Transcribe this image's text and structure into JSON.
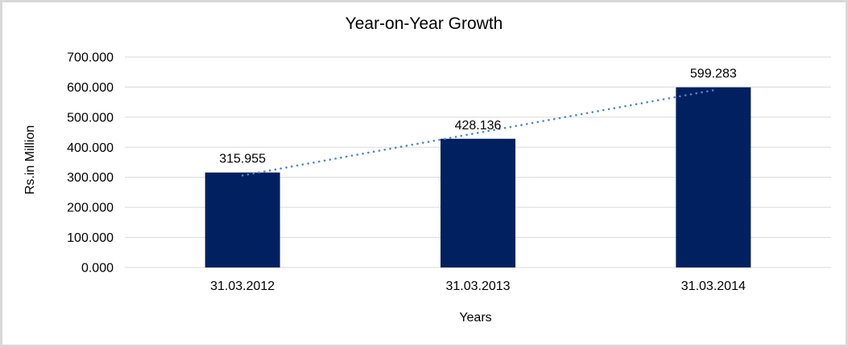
{
  "frame": {
    "background": "#ffffff",
    "border_color": "#d8d8d8"
  },
  "chart_data": {
    "type": "bar",
    "title": "Year-on-Year Growth",
    "xlabel": "Years",
    "ylabel": "Rs.in Million",
    "categories": [
      "31.03.2012",
      "31.03.2013",
      "31.03.2014"
    ],
    "values": [
      315.955,
      428.136,
      599.283
    ],
    "data_labels": [
      "315.955",
      "428.136",
      "599.283"
    ],
    "ylim": [
      0,
      700
    ],
    "ytick_interval": 100,
    "ytick_labels": [
      "0.000",
      "100.000",
      "200.000",
      "300.000",
      "400.000",
      "500.000",
      "600.000",
      "700.000"
    ],
    "grid": true,
    "legend": false,
    "bar_color": "#002060",
    "gridline_color": "#d9d9d9",
    "text_color": "#000000",
    "trendline": {
      "type": "linear",
      "style": "dotted",
      "color": "#4e87c6"
    }
  }
}
